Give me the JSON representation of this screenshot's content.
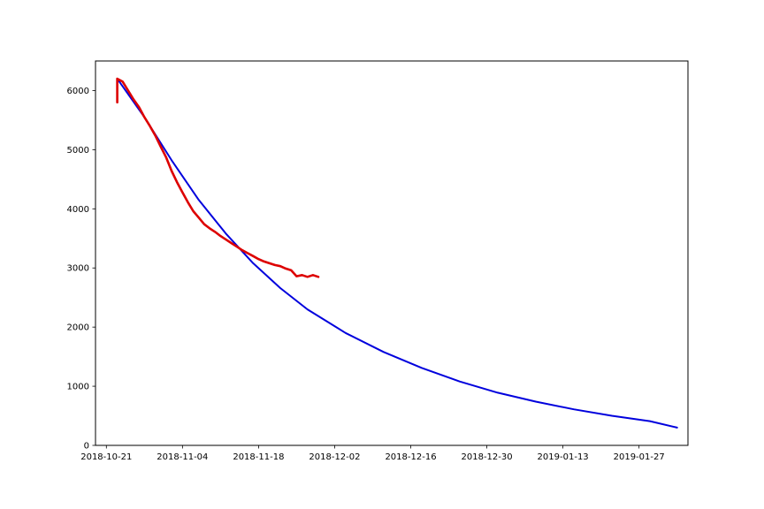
{
  "chart_data": {
    "type": "line",
    "title": "",
    "xlabel": "",
    "ylabel": "",
    "xlim": [
      "2018-10-19",
      "2019-02-05"
    ],
    "ylim": [
      0,
      6500
    ],
    "grid": false,
    "x_ticks": [
      "2018-10-21",
      "2018-11-04",
      "2018-11-18",
      "2018-12-02",
      "2018-12-16",
      "2018-12-30",
      "2019-01-13",
      "2019-01-27"
    ],
    "y_ticks": [
      0,
      1000,
      2000,
      3000,
      4000,
      5000,
      6000
    ],
    "series": [
      {
        "color": "#0000dd",
        "points": [
          [
            "2018-10-23",
            6200
          ],
          [
            "2018-10-28",
            5550
          ],
          [
            "2018-11-02",
            4820
          ],
          [
            "2018-11-07",
            4150
          ],
          [
            "2018-11-12",
            3580
          ],
          [
            "2018-11-17",
            3080
          ],
          [
            "2018-11-22",
            2660
          ],
          [
            "2018-11-27",
            2300
          ],
          [
            "2018-12-04",
            1900
          ],
          [
            "2018-12-11",
            1580
          ],
          [
            "2018-12-18",
            1310
          ],
          [
            "2018-12-25",
            1080
          ],
          [
            "2019-01-01",
            890
          ],
          [
            "2019-01-08",
            740
          ],
          [
            "2019-01-15",
            610
          ],
          [
            "2019-01-22",
            500
          ],
          [
            "2019-01-29",
            410
          ],
          [
            "2019-02-03",
            300
          ]
        ]
      },
      {
        "color": "#dd0000",
        "points": [
          [
            "2018-10-23",
            5800
          ],
          [
            "2018-10-23",
            6200
          ],
          [
            "2018-10-24",
            6150
          ],
          [
            "2018-10-25",
            6000
          ],
          [
            "2018-10-26",
            5850
          ],
          [
            "2018-10-27",
            5720
          ],
          [
            "2018-10-28",
            5550
          ],
          [
            "2018-10-29",
            5400
          ],
          [
            "2018-10-30",
            5240
          ],
          [
            "2018-10-31",
            5050
          ],
          [
            "2018-11-01",
            4870
          ],
          [
            "2018-11-02",
            4640
          ],
          [
            "2018-11-03",
            4450
          ],
          [
            "2018-11-04",
            4280
          ],
          [
            "2018-11-05",
            4110
          ],
          [
            "2018-11-06",
            3960
          ],
          [
            "2018-11-07",
            3850
          ],
          [
            "2018-11-08",
            3740
          ],
          [
            "2018-11-09",
            3670
          ],
          [
            "2018-11-10",
            3610
          ],
          [
            "2018-11-11",
            3540
          ],
          [
            "2018-11-12",
            3480
          ],
          [
            "2018-11-13",
            3420
          ],
          [
            "2018-11-14",
            3360
          ],
          [
            "2018-11-15",
            3300
          ],
          [
            "2018-11-16",
            3250
          ],
          [
            "2018-11-17",
            3200
          ],
          [
            "2018-11-18",
            3150
          ],
          [
            "2018-11-19",
            3110
          ],
          [
            "2018-11-20",
            3080
          ],
          [
            "2018-11-21",
            3050
          ],
          [
            "2018-11-22",
            3030
          ],
          [
            "2018-11-23",
            2990
          ],
          [
            "2018-11-24",
            2960
          ],
          [
            "2018-11-25",
            2860
          ],
          [
            "2018-11-26",
            2880
          ],
          [
            "2018-11-27",
            2850
          ],
          [
            "2018-11-28",
            2880
          ],
          [
            "2018-11-29",
            2850
          ]
        ]
      }
    ]
  }
}
